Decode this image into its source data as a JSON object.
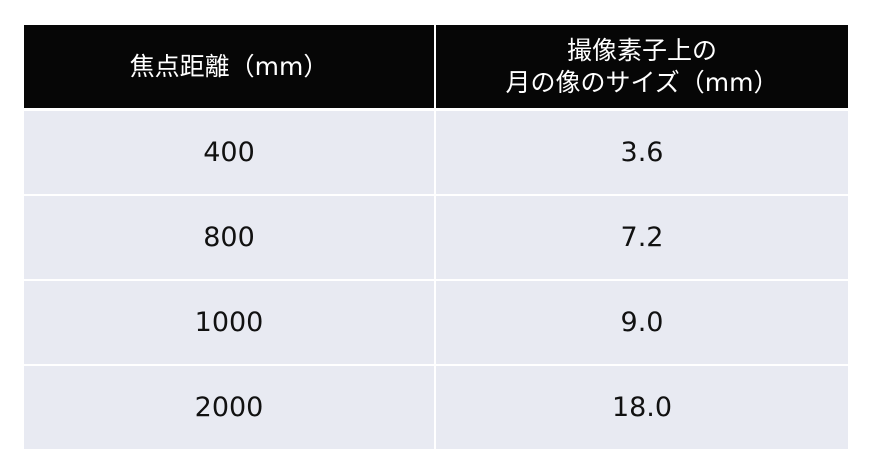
{
  "table": {
    "headers": {
      "focal_length": "焦点距離（mm）",
      "moon_size_line1": "撮像素子上の",
      "moon_size_line2": "月の像のサイズ（mm）"
    },
    "rows": [
      {
        "focal_length": "400",
        "moon_size": "3.6"
      },
      {
        "focal_length": "800",
        "moon_size": "7.2"
      },
      {
        "focal_length": "1000",
        "moon_size": "9.0"
      },
      {
        "focal_length": "2000",
        "moon_size": "18.0"
      }
    ],
    "colors": {
      "header_bg": "#060606",
      "header_text": "#ffffff",
      "row_bg": "#e8eaf2"
    }
  }
}
